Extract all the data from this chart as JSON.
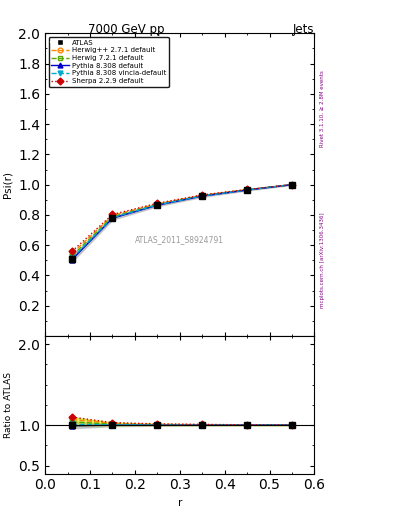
{
  "title_left": "7000 GeV pp",
  "title_right": "Jets",
  "right_label_top": "Rivet 3.1.10, ≥ 2.8M events",
  "right_label_bottom": "mcplots.cern.ch [arXiv:1306.3436]",
  "watermark": "ATLAS_2011_S8924791",
  "ylabel_main": "Psi(r)",
  "ylabel_ratio": "Ratio to ATLAS",
  "xlabel": "r",
  "xlim": [
    0,
    0.6
  ],
  "ylim_main": [
    0.0,
    2.0
  ],
  "ylim_ratio": [
    0.4,
    2.1
  ],
  "yticks_main": [
    0.2,
    0.4,
    0.6,
    0.8,
    1.0,
    1.2,
    1.4,
    1.6,
    1.8,
    2.0
  ],
  "yticks_ratio": [
    0.5,
    1.0,
    2.0
  ],
  "xticks": [
    0.0,
    0.1,
    0.2,
    0.3,
    0.4,
    0.5,
    0.6
  ],
  "x_data": [
    0.06,
    0.15,
    0.25,
    0.35,
    0.45,
    0.55
  ],
  "atlas_y": [
    0.51,
    0.78,
    0.865,
    0.925,
    0.965,
    1.0
  ],
  "atlas_yerr": [
    0.02,
    0.012,
    0.008,
    0.006,
    0.004,
    0.002
  ],
  "herwig_pp_y": [
    0.545,
    0.797,
    0.873,
    0.93,
    0.967,
    1.0
  ],
  "herwig72_y": [
    0.53,
    0.788,
    0.868,
    0.927,
    0.966,
    1.0
  ],
  "pythia_default_y": [
    0.505,
    0.778,
    0.864,
    0.924,
    0.964,
    1.0
  ],
  "pythia_vincia_y": [
    0.515,
    0.782,
    0.866,
    0.925,
    0.965,
    1.0
  ],
  "sherpa_y": [
    0.56,
    0.803,
    0.877,
    0.932,
    0.968,
    1.0
  ],
  "atlas_color": "#000000",
  "herwig_pp_color": "#ff8800",
  "herwig72_color": "#55aa00",
  "pythia_default_color": "#0000cc",
  "pythia_vincia_color": "#00aacc",
  "sherpa_color": "#cc0000",
  "ratio_band_color": "#ccdd00",
  "ratio_band_alpha": 0.6
}
